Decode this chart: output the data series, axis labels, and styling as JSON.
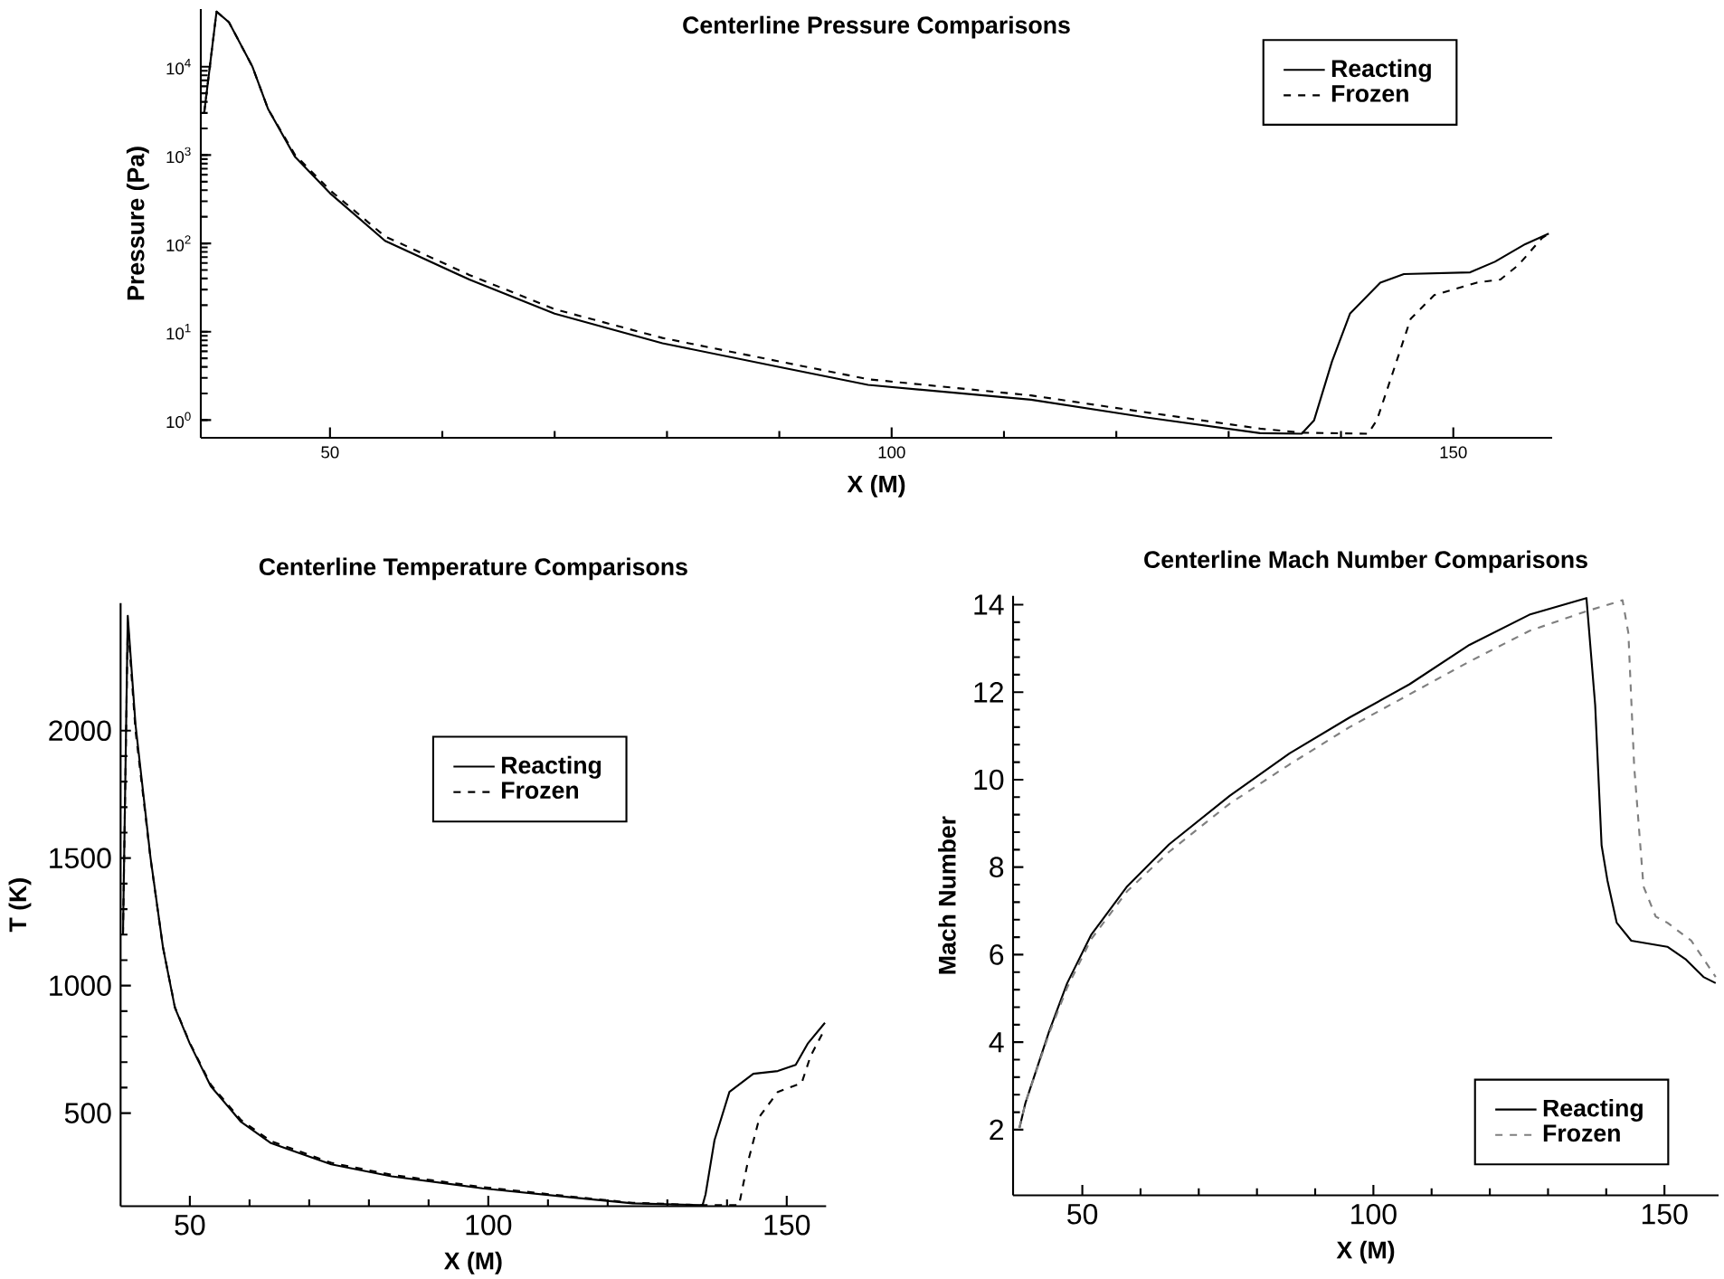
{
  "chart_data": [
    {
      "type": "line",
      "title": "Centerline Pressure Comparisons",
      "xlabel": "X (M)",
      "ylabel": "Pressure (Pa)",
      "log": "y",
      "xlim": [
        38.5,
        158.8
      ],
      "ylim": [
        0.63,
        45000
      ],
      "xticks": [
        50,
        100,
        150
      ],
      "yticks": [
        {
          "value": 1,
          "label": "10$^{0}$"
        },
        {
          "value": 10,
          "label": "10$^{1}$"
        },
        {
          "value": 100,
          "label": "10$^{2}$"
        },
        {
          "value": 1000,
          "label": "10$^{3}$"
        },
        {
          "value": 10000,
          "label": "10$^{4}$"
        }
      ],
      "legend": "top right",
      "series": [
        {
          "name": "Reacting",
          "color": "#000000",
          "line_style": "solid",
          "x": [
            38.8,
            39.9,
            41,
            43.1,
            44.5,
            46.9,
            50,
            54.9,
            62.4,
            70,
            79.6,
            90.4,
            97.9,
            112.4,
            123.1,
            132.8,
            136.5,
            137.6,
            139.2,
            140.8,
            143.5,
            145.6,
            151.5,
            153.7,
            156.4,
            158.5
          ],
          "values": [
            3000,
            42000,
            32000,
            10000,
            3300,
            950,
            370,
            107,
            39,
            16,
            7.4,
            3.9,
            2.5,
            1.7,
            1.05,
            0.71,
            0.7,
            0.99,
            4.6,
            16,
            36,
            45,
            47,
            62,
            98,
            129
          ]
        },
        {
          "name": "Frozen",
          "color": "#000000",
          "line_style": "dashed",
          "x": [
            38.8,
            39.9,
            41,
            43.1,
            44.5,
            46.9,
            50,
            54.9,
            62.4,
            70,
            79.6,
            90.4,
            97.9,
            112.4,
            123.1,
            132.8,
            136.5,
            142.4,
            143.2,
            144.6,
            146.2,
            148.3,
            152.1,
            154.2,
            155.8,
            157.9,
            158.5
          ],
          "values": [
            3000,
            42000,
            32000,
            10000,
            3300,
            1000,
            400,
            120,
            44,
            18,
            8.5,
            4.5,
            2.9,
            1.9,
            1.2,
            0.8,
            0.72,
            0.7,
            1.0,
            3.4,
            14,
            26,
            36,
            39,
            57,
            115,
            129
          ]
        }
      ]
    },
    {
      "type": "line",
      "title": "Centerline Temperature Comparisons",
      "xlabel": "X (M)",
      "ylabel": "T (K)",
      "xlim": [
        38.4,
        156.6
      ],
      "ylim": [
        135,
        2500
      ],
      "xticks": [
        50,
        100,
        150
      ],
      "yticks": [
        500,
        1000,
        1500,
        2000
      ],
      "legend": "top",
      "series": [
        {
          "name": "Reacting",
          "color": "#000000",
          "line_style": "solid",
          "x": [
            38.8,
            39.6,
            40.9,
            43.4,
            45.5,
            47.5,
            50,
            53.5,
            58.6,
            63.6,
            73.7,
            83.8,
            99,
            114.1,
            124.2,
            135.9,
            136.4,
            137.9,
            140.4,
            144.4,
            148.5,
            151.5,
            153.5,
            156.4
          ],
          "values": [
            1200,
            2450,
            2023,
            1504,
            1150,
            913,
            772,
            606,
            465,
            382,
            299,
            252,
            205,
            169,
            146,
            139,
            181,
            394,
            583,
            654,
            665,
            689,
            772,
            854
          ]
        },
        {
          "name": "Frozen",
          "color": "#000000",
          "line_style": "dashed",
          "x": [
            38.8,
            39.6,
            40.9,
            43.4,
            45.5,
            47.5,
            50,
            53.5,
            58.6,
            63.6,
            73.7,
            83.8,
            99,
            114.1,
            124.2,
            135.9,
            142,
            143.4,
            145.5,
            148.5,
            152.5,
            154,
            156.4
          ],
          "values": [
            1200,
            2420,
            2000,
            1500,
            1150,
            915,
            775,
            612,
            472,
            390,
            305,
            258,
            210,
            172,
            148,
            139,
            139,
            299,
            488,
            583,
            618,
            724,
            831
          ]
        }
      ]
    },
    {
      "type": "line",
      "title": "Centerline Mach Number Comparisons",
      "xlabel": "X (M)",
      "ylabel": "Mach Number",
      "xlim": [
        38.1,
        159.3
      ],
      "ylim": [
        0.5,
        14.2
      ],
      "xticks": [
        50,
        100,
        150
      ],
      "yticks": [
        2,
        4,
        6,
        8,
        10,
        12,
        14
      ],
      "legend": "bottom right",
      "series": [
        {
          "name": "Reacting",
          "color": "#000000",
          "line_style": "solid",
          "x": [
            39.2,
            40.2,
            44.3,
            47.4,
            51.5,
            57.7,
            64.9,
            75.3,
            85.6,
            95.9,
            106.2,
            116.5,
            126.8,
            136.6,
            138.1,
            139.2,
            140.2,
            141.8,
            144.3,
            150.5,
            153.6,
            156.7,
            158.8
          ],
          "values": [
            2.04,
            2.6,
            4.25,
            5.35,
            6.45,
            7.56,
            8.52,
            9.63,
            10.6,
            11.42,
            12.18,
            13.08,
            13.77,
            14.15,
            11.7,
            8.5,
            7.7,
            6.73,
            6.32,
            6.18,
            5.9,
            5.49,
            5.35
          ]
        },
        {
          "name": "Frozen",
          "color": "#7f7f7f",
          "line_style": "dashed",
          "x": [
            39.2,
            40.2,
            44.3,
            47.4,
            51.5,
            57.7,
            64.9,
            75.3,
            85.6,
            95.9,
            106.2,
            116.5,
            126.8,
            136.6,
            142.8,
            143.8,
            144.8,
            146.4,
            148.5,
            150.5,
            154.6,
            158.8
          ],
          "values": [
            2.04,
            2.6,
            4.2,
            5.25,
            6.35,
            7.45,
            8.35,
            9.45,
            10.35,
            11.2,
            11.95,
            12.7,
            13.4,
            13.85,
            14.1,
            13.35,
            10.3,
            7.56,
            6.87,
            6.73,
            6.32,
            5.49
          ]
        }
      ]
    }
  ]
}
